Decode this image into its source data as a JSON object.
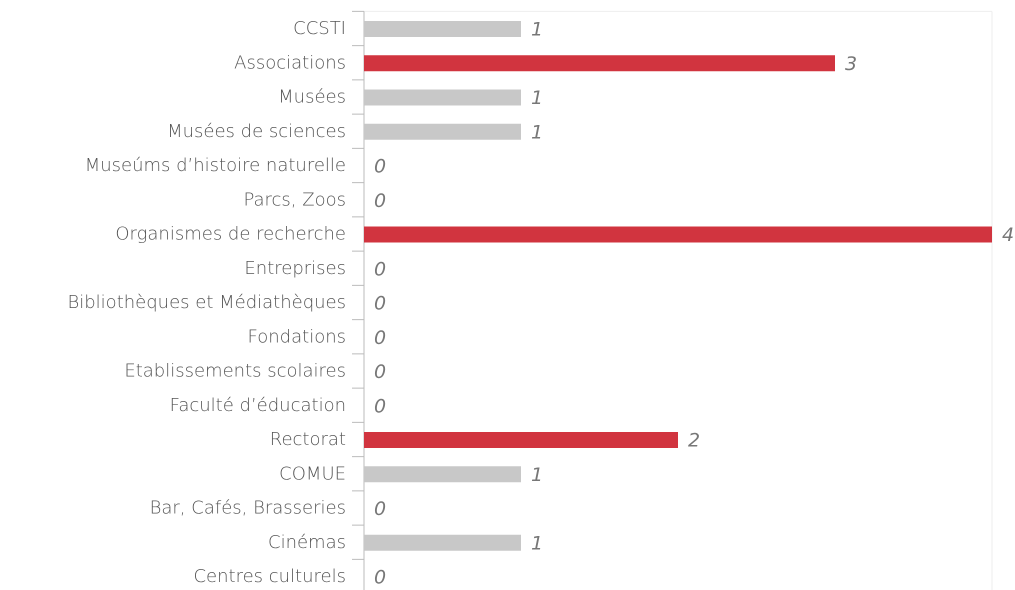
{
  "chart_data": {
    "type": "bar",
    "orientation": "horizontal",
    "categories": [
      "CCSTI",
      "Associations",
      "Musées",
      "Musées de sciences",
      "Museúms d’histoire naturelle",
      "Parcs, Zoos",
      "Organismes de recherche",
      "Entreprises",
      "Bibliothèques et Médiathèques",
      "Fondations",
      "Etablissements scolaires",
      "Faculté d’éducation",
      "Rectorat",
      "COMUE",
      "Bar, Cafés, Brasseries",
      "Cinémas",
      "Centres culturels"
    ],
    "values": [
      1,
      3,
      1,
      1,
      0,
      0,
      4,
      0,
      0,
      0,
      0,
      0,
      2,
      1,
      0,
      1,
      0
    ],
    "colors": [
      "#c8c8c8",
      "#d1343f",
      "#c8c8c8",
      "#c8c8c8",
      "#c8c8c8",
      "#c8c8c8",
      "#d1343f",
      "#c8c8c8",
      "#c8c8c8",
      "#c8c8c8",
      "#c8c8c8",
      "#c8c8c8",
      "#d1343f",
      "#c8c8c8",
      "#c8c8c8",
      "#c8c8c8",
      "#c8c8c8"
    ],
    "xlim": [
      0,
      4
    ]
  }
}
